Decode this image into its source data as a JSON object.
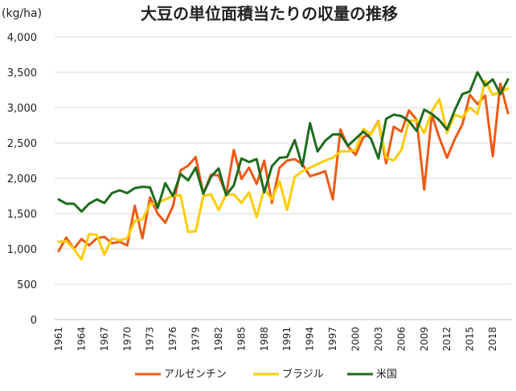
{
  "chart_data": {
    "type": "line",
    "title": "大豆の単位面積当たりの収量の推移",
    "unit_label": "(kg/ha)",
    "ylim": [
      0,
      4000
    ],
    "y_ticks": [
      "0",
      "500",
      "1,000",
      "1,500",
      "2,000",
      "2,500",
      "3,000",
      "3,500",
      "4,000"
    ],
    "x": [
      1961,
      1962,
      1963,
      1964,
      1965,
      1966,
      1967,
      1968,
      1969,
      1970,
      1971,
      1972,
      1973,
      1974,
      1975,
      1976,
      1977,
      1978,
      1979,
      1980,
      1981,
      1982,
      1983,
      1984,
      1985,
      1986,
      1987,
      1988,
      1989,
      1990,
      1991,
      1992,
      1993,
      1994,
      1995,
      1996,
      1997,
      1998,
      1999,
      2000,
      2001,
      2002,
      2003,
      2004,
      2005,
      2006,
      2007,
      2008,
      2009,
      2010,
      2011,
      2012,
      2013,
      2014,
      2015,
      2016,
      2017,
      2018,
      2019,
      2020
    ],
    "x_tick_labels": [
      "1961",
      "1964",
      "1967",
      "1970",
      "1973",
      "1976",
      "1979",
      "1982",
      "1985",
      "1988",
      "1991",
      "1994",
      "1997",
      "2000",
      "2003",
      "2006",
      "2009",
      "2012",
      "2015",
      "2018"
    ],
    "grid": true,
    "legend_position": "bottom",
    "series": [
      {
        "name": "アルゼンチン",
        "color": "#ee5a15",
        "values": [
          970,
          1160,
          1000,
          1140,
          1050,
          1150,
          1170,
          1080,
          1100,
          1050,
          1610,
          1150,
          1730,
          1500,
          1370,
          1600,
          2110,
          2180,
          2300,
          1780,
          2050,
          2040,
          1770,
          2400,
          1990,
          2150,
          1920,
          2250,
          1650,
          2150,
          2250,
          2270,
          2200,
          2030,
          2060,
          2100,
          1700,
          2690,
          2450,
          2330,
          2580,
          2630,
          2810,
          2210,
          2730,
          2660,
          2960,
          2830,
          1840,
          2900,
          2570,
          2290,
          2550,
          2760,
          3180,
          3050,
          3170,
          2310,
          3340,
          2920
        ]
      },
      {
        "name": "ブラジル",
        "color": "#ffcc00",
        "values": [
          1100,
          1110,
          1000,
          850,
          1210,
          1200,
          920,
          1150,
          1120,
          1150,
          1400,
          1420,
          1630,
          1650,
          1700,
          1750,
          1760,
          1240,
          1250,
          1750,
          1770,
          1550,
          1770,
          1770,
          1650,
          1800,
          1450,
          1850,
          1700,
          1960,
          1550,
          2020,
          2100,
          2150,
          2200,
          2250,
          2290,
          2380,
          2380,
          2400,
          2700,
          2620,
          2800,
          2290,
          2250,
          2400,
          2810,
          2820,
          2640,
          2950,
          3120,
          2640,
          2900,
          2860,
          3000,
          2910,
          3380,
          3180,
          3220,
          3270
        ]
      },
      {
        "name": "米国",
        "color": "#1e6b1e",
        "values": [
          1700,
          1640,
          1640,
          1530,
          1640,
          1700,
          1650,
          1790,
          1830,
          1790,
          1860,
          1880,
          1870,
          1580,
          1930,
          1750,
          2060,
          1970,
          2150,
          1780,
          2020,
          2140,
          1760,
          1900,
          2280,
          2230,
          2270,
          1800,
          2170,
          2290,
          2300,
          2540,
          2170,
          2780,
          2380,
          2530,
          2620,
          2620,
          2460,
          2560,
          2660,
          2560,
          2280,
          2840,
          2900,
          2880,
          2810,
          2670,
          2970,
          2910,
          2820,
          2690,
          2960,
          3190,
          3230,
          3500,
          3310,
          3400,
          3190,
          3400
        ]
      }
    ]
  }
}
